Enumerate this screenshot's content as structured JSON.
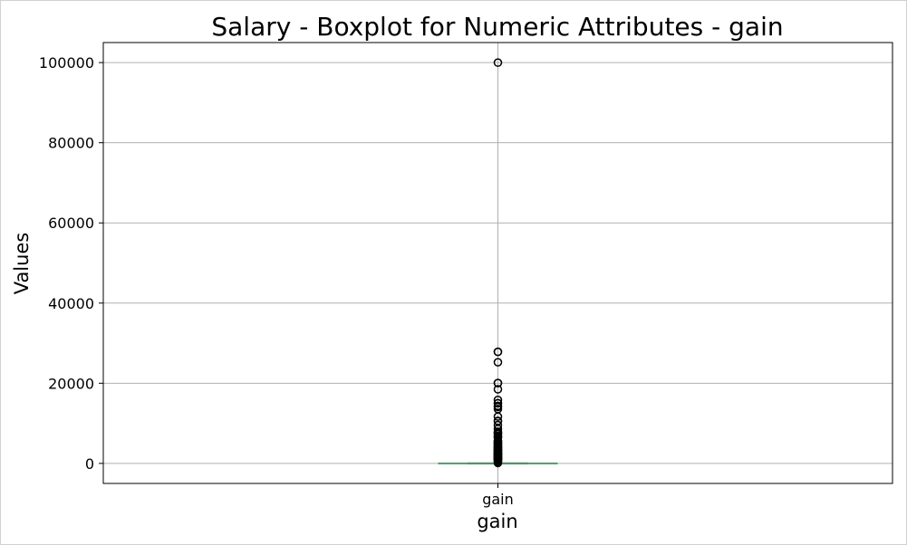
{
  "chart_data": {
    "type": "box",
    "title": "Salary - Boxplot for Numeric Attributes - gain",
    "xlabel": "gain",
    "ylabel": "Values",
    "categories": [
      "gain"
    ],
    "ylim": [
      -5000,
      105000
    ],
    "yticks": [
      0,
      20000,
      40000,
      60000,
      80000,
      100000
    ],
    "ytick_labels": [
      "0",
      "20000",
      "40000",
      "60000",
      "80000",
      "100000"
    ],
    "grid": true,
    "series": [
      {
        "q1": 0,
        "median": 0,
        "q3": 0,
        "whisker_low": 0,
        "whisker_high": 0,
        "outliers": [
          99999,
          27828,
          27828,
          25236,
          20051,
          20051,
          18481,
          15831,
          15024,
          15020,
          14344,
          14084,
          13550,
          11678,
          10605,
          10520,
          9562,
          8614,
          7896,
          7688,
          7443,
          7298,
          6849,
          6767,
          6514,
          6418,
          5721,
          5556,
          5455,
          5178,
          5013,
          4934,
          4787,
          4650,
          4416,
          4386,
          4101,
          4064,
          3908,
          3818,
          3674,
          3471,
          3411,
          3325,
          3137,
          3103,
          2964,
          2907,
          2829,
          2597,
          2580,
          2407,
          2354,
          2290,
          2202,
          2176,
          2174,
          2105,
          2050,
          1848,
          1797,
          1639,
          1506,
          1471,
          1424,
          1409,
          1173,
          1151,
          1111,
          1086,
          991,
          914,
          594,
          401,
          114
        ]
      }
    ]
  },
  "colors": {
    "median": "#4c9a6a",
    "box": "#4c9a6a",
    "grid": "#b0b0b0",
    "outlier": "#000000"
  }
}
